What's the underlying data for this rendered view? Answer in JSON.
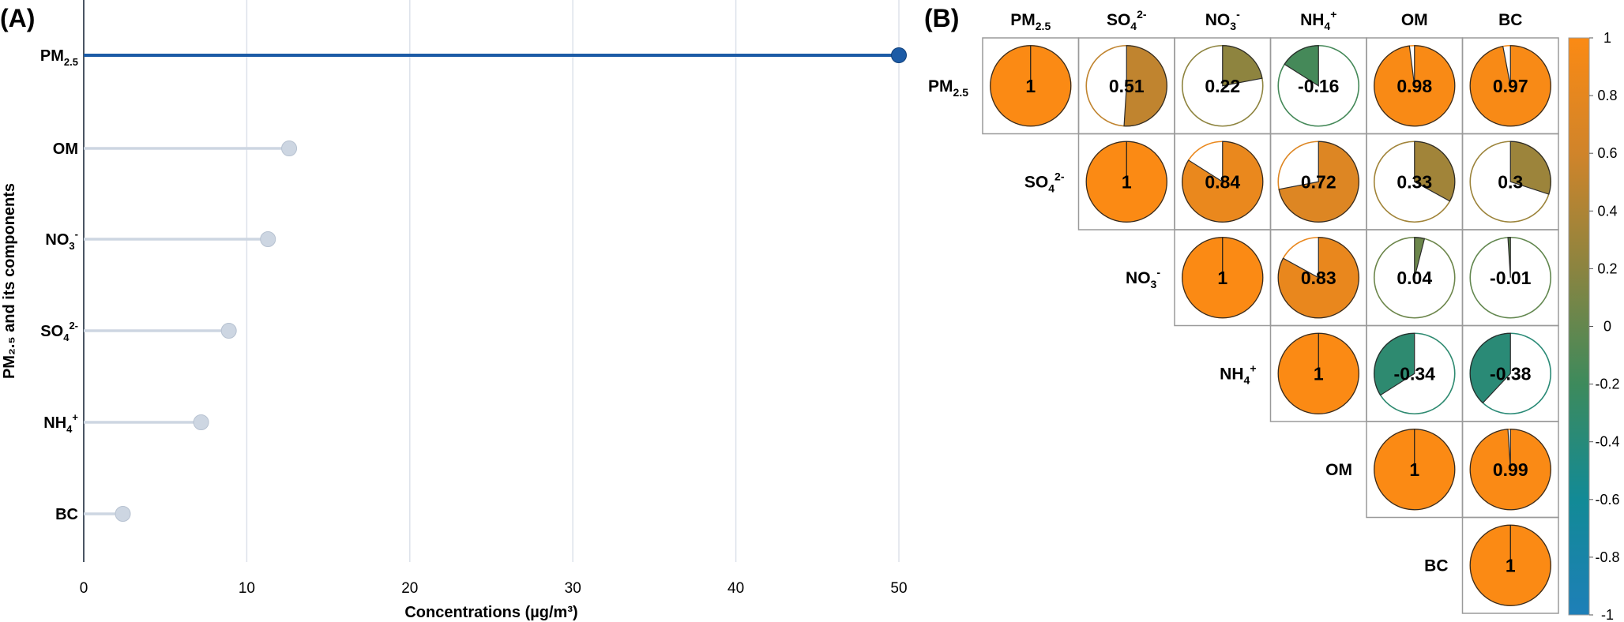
{
  "chart_data": [
    {
      "panel": "(A)",
      "type": "lollipop",
      "xlabel": "Concentrations (µg/m³)",
      "ylabel": "PM₂.₅ and its components",
      "xlim": [
        0,
        50
      ],
      "xticks": [
        "0",
        "10",
        "20",
        "30",
        "40",
        "50"
      ],
      "grid": true,
      "categories": [
        "PM2.5",
        "OM",
        "NO3-",
        "SO42-",
        "NH4+",
        "BC"
      ],
      "category_labels": [
        {
          "base": "PM",
          "sub": "2.5",
          "sup": ""
        },
        {
          "base": "OM",
          "sub": "",
          "sup": ""
        },
        {
          "base": "NO",
          "sub": "3",
          "sup": "-"
        },
        {
          "base": "SO",
          "sub": "4",
          "sup": "2-"
        },
        {
          "base": "NH",
          "sub": "4",
          "sup": "+"
        },
        {
          "base": "BC",
          "sub": "",
          "sup": ""
        }
      ],
      "values": [
        50.0,
        12.6,
        11.3,
        8.9,
        7.2,
        2.4
      ],
      "highlight_color": "#1c5ba6",
      "muted_color": "#cdd6e2"
    },
    {
      "panel": "(B)",
      "type": "heatmap",
      "style": "pie-correlation-matrix",
      "variables": [
        "PM2.5",
        "SO42-",
        "NO3-",
        "NH4+",
        "OM",
        "BC"
      ],
      "variable_labels": [
        {
          "base": "PM",
          "sub": "2.5",
          "sup": ""
        },
        {
          "base": "SO",
          "sub": "4",
          "sup": "2-"
        },
        {
          "base": "NO",
          "sub": "3",
          "sup": "-"
        },
        {
          "base": "NH",
          "sub": "4",
          "sup": "+"
        },
        {
          "base": "OM",
          "sub": "",
          "sup": ""
        },
        {
          "base": "BC",
          "sub": "",
          "sup": ""
        }
      ],
      "matrix": [
        [
          1,
          0.51,
          0.22,
          -0.16,
          0.98,
          0.97
        ],
        [
          null,
          1,
          0.84,
          0.72,
          0.33,
          0.3
        ],
        [
          null,
          null,
          1,
          0.83,
          0.04,
          -0.01
        ],
        [
          null,
          null,
          null,
          1,
          -0.34,
          -0.38
        ],
        [
          null,
          null,
          null,
          null,
          1,
          0.99
        ],
        [
          null,
          null,
          null,
          null,
          null,
          1
        ]
      ],
      "value_labels": [
        [
          "1",
          "0.51",
          "0.22",
          "-0.16",
          "0.98",
          "0.97"
        ],
        [
          "",
          "1",
          "0.84",
          "0.72",
          "0.33",
          "0.3"
        ],
        [
          "",
          "",
          "1",
          "0.83",
          "0.04",
          "-0.01"
        ],
        [
          "",
          "",
          "",
          "1",
          "-0.34",
          "-0.38"
        ],
        [
          "",
          "",
          "",
          "",
          "1",
          "0.99"
        ],
        [
          "",
          "",
          "",
          "",
          "",
          "1"
        ]
      ],
      "colorbar": {
        "range": [
          -1,
          1
        ],
        "ticks": [
          "1",
          "0.8",
          "0.6",
          "0.4",
          "0.2",
          "0",
          "-0.2",
          "-0.4",
          "-0.6",
          "-0.8",
          "-1"
        ],
        "colors": [
          "#1e7fb8",
          "#128a96",
          "#3d8a5c",
          "#8b8440",
          "#d0842a",
          "#fb8a14"
        ]
      }
    }
  ]
}
